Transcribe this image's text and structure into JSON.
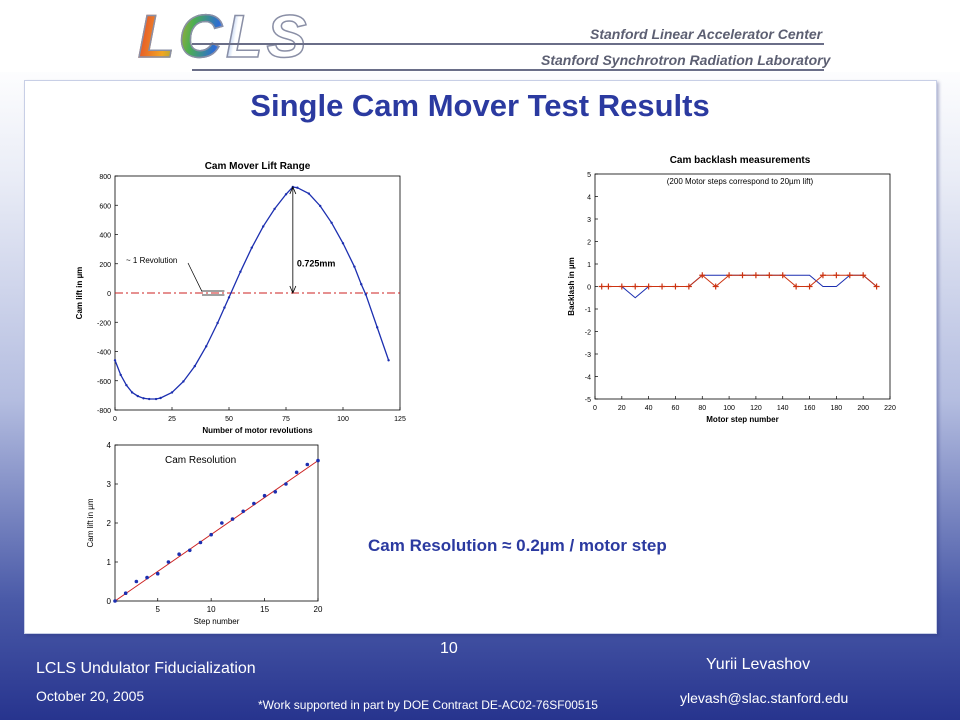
{
  "header": {
    "logo_text": "LCLS",
    "org1": "Stanford Linear Accelerator Center",
    "org2": "Stanford Synchrotron Radiation Laboratory"
  },
  "slide": {
    "title": "Single Cam Mover Test Results",
    "resolution_note": "Cam Resolution ≈ 0.2µm / motor step"
  },
  "footer": {
    "page_number": "10",
    "presentation": "LCLS Undulator Fiducialization",
    "date": "October 20, 2005",
    "author": "Yurii Levashov",
    "email": "ylevash@slac.stanford.edu",
    "support_note": "*Work supported in part by DOE Contract DE-AC02-76SF00515"
  },
  "chart_data": [
    {
      "type": "line",
      "title": "Cam Mover Lift Range",
      "xlabel": "Number of motor revolutions",
      "ylabel": "Cam lift in µm",
      "xlim": [
        0,
        125
      ],
      "ylim": [
        -800,
        800
      ],
      "xticks": [
        0,
        25,
        50,
        75,
        100,
        125
      ],
      "yticks": [
        -800,
        -600,
        -400,
        -200,
        0,
        200,
        400,
        600,
        800
      ],
      "series": [
        {
          "values_desc": "sinusoid",
          "x": [
            0,
            2.5,
            5,
            7.5,
            10,
            12.5,
            15,
            18,
            20,
            25,
            30,
            35,
            40,
            45,
            48,
            50,
            55,
            60,
            65,
            70,
            75,
            78,
            80,
            85,
            90,
            95,
            100,
            105,
            108,
            110,
            115,
            120
          ],
          "y": [
            -460,
            -560,
            -630,
            -680,
            -705,
            -720,
            -725,
            -725,
            -718,
            -680,
            -605,
            -500,
            -365,
            -205,
            -100,
            -30,
            145,
            310,
            455,
            575,
            675,
            725,
            720,
            680,
            595,
            480,
            340,
            180,
            60,
            -10,
            -235,
            -460
          ]
        }
      ],
      "reference_line": {
        "y": 0,
        "color": "#cc2222",
        "style": "dash-dot"
      },
      "annotations": [
        {
          "text": "~ 1 Revolution"
        },
        {
          "text": "0.725mm"
        }
      ],
      "colors": {
        "series": "#1c2fb0"
      }
    },
    {
      "type": "line",
      "title": "Cam backlash measurements",
      "subtitle": "(200 Motor steps correspond to 20µm lift)",
      "xlabel": "Motor step number",
      "ylabel": "Backlash in µm",
      "xlim": [
        0,
        220
      ],
      "ylim": [
        -5,
        5
      ],
      "xticks": [
        0,
        20,
        40,
        60,
        80,
        100,
        120,
        140,
        160,
        180,
        200,
        220
      ],
      "yticks": [
        -5,
        -4,
        -3,
        -2,
        -1,
        0,
        1,
        2,
        3,
        4,
        5
      ],
      "series": [
        {
          "color": "#1c2fb0",
          "x": [
            10,
            20,
            30,
            40,
            50,
            60,
            70,
            80,
            90,
            100,
            110,
            120,
            130,
            140,
            150,
            160,
            170,
            180,
            190,
            200,
            210
          ],
          "y": [
            0,
            0,
            -0.5,
            0,
            0,
            0,
            0,
            0.5,
            0.5,
            0.5,
            0.5,
            0.5,
            0.5,
            0.5,
            0.5,
            0.5,
            0,
            0,
            0.5,
            0.5,
            0
          ]
        },
        {
          "color": "#cc3311",
          "x": [
            5,
            10,
            20,
            30,
            40,
            50,
            60,
            70,
            80,
            90,
            100,
            110,
            120,
            130,
            140,
            150,
            160,
            170,
            180,
            190,
            200,
            210
          ],
          "y": [
            0,
            0,
            0,
            0,
            0,
            0,
            0,
            0,
            0.5,
            0,
            0.5,
            0.5,
            0.5,
            0.5,
            0.5,
            0,
            0,
            0.5,
            0.5,
            0.5,
            0.5,
            0
          ]
        }
      ]
    },
    {
      "type": "scatter",
      "title": "Cam Resolution",
      "xlabel": "Step number",
      "ylabel": "Cam lift in µm",
      "xlim": [
        1,
        20
      ],
      "ylim": [
        0,
        4
      ],
      "xticks": [
        5,
        10,
        15,
        20
      ],
      "yticks": [
        0,
        1,
        2,
        3,
        4
      ],
      "points": {
        "x": [
          1,
          2,
          3,
          4,
          5,
          6,
          7,
          8,
          9,
          10,
          11,
          12,
          13,
          14,
          15,
          16,
          17,
          18,
          19,
          20
        ],
        "y": [
          0.0,
          0.2,
          0.5,
          0.6,
          0.7,
          1.0,
          1.2,
          1.3,
          1.5,
          1.7,
          2.0,
          2.1,
          2.3,
          2.5,
          2.7,
          2.8,
          3.0,
          3.3,
          3.5,
          3.6
        ]
      },
      "fit_line": {
        "x": [
          1,
          20
        ],
        "y": [
          0.0,
          3.6
        ],
        "color": "#cc2222"
      },
      "colors": {
        "points": "#1c2fb0"
      }
    }
  ]
}
